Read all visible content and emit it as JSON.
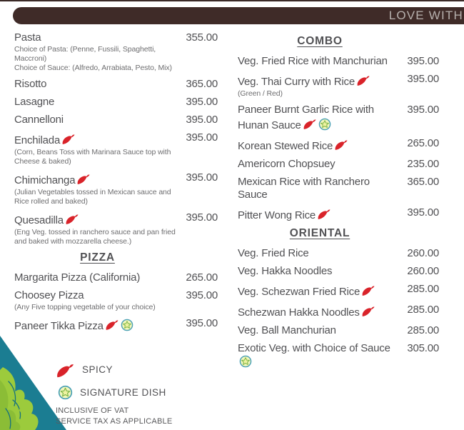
{
  "top_bar": {
    "title": "LOVE WITH"
  },
  "menu": {
    "left_column": {
      "sections": [
        {
          "heading": "",
          "items": [
            {
              "name": "Pasta",
              "price": "355.00",
              "spicy": false,
              "signature": false,
              "desc": [
                "Choice of Pasta: (Penne, Fussili, Spaghetti, Maccroni)",
                "Choice of Sauce:  (Alfredo, Arrabiata, Pesto, Mix)"
              ]
            },
            {
              "name": "Risotto",
              "price": "365.00",
              "spicy": false,
              "signature": false,
              "desc": []
            },
            {
              "name": "Lasagne",
              "price": "395.00",
              "spicy": false,
              "signature": false,
              "desc": []
            },
            {
              "name": "Cannelloni",
              "price": "395.00",
              "spicy": false,
              "signature": false,
              "desc": []
            },
            {
              "name": "Enchilada",
              "price": "395.00",
              "spicy": true,
              "signature": false,
              "desc": [
                "(Corn, Beans Toss with Marinara Sauce top with",
                "Cheese & baked)"
              ]
            },
            {
              "name": "Chimichanga",
              "price": "395.00",
              "spicy": true,
              "signature": false,
              "desc": [
                "(Julian Vegetables tossed in Mexican sauce and",
                "Rice rolled and baked)"
              ]
            },
            {
              "name": "Quesadilla",
              "price": "395.00",
              "spicy": true,
              "signature": false,
              "desc": [
                "(Eng Veg. tossed in ranchero sauce and pan fried",
                "and baked with mozzarella cheese.)"
              ]
            }
          ]
        },
        {
          "heading": "PIZZA",
          "items": [
            {
              "name": "Margarita Pizza (California)",
              "price": "265.00",
              "spicy": false,
              "signature": false,
              "desc": []
            },
            {
              "name": "Choosey Pizza",
              "price": "395.00",
              "spicy": false,
              "signature": false,
              "desc": [
                "(Any Five topping vegetable of your choice)"
              ]
            },
            {
              "name": "Paneer Tikka Pizza",
              "price": "395.00",
              "spicy": true,
              "signature": true,
              "desc": []
            }
          ]
        }
      ]
    },
    "right_column": {
      "sections": [
        {
          "heading": "COMBO",
          "items": [
            {
              "name": "Veg. Fried Rice with Manchurian",
              "price": "395.00",
              "spicy": false,
              "signature": false,
              "desc": []
            },
            {
              "name": "Veg. Thai Curry with Rice",
              "price": "395.00",
              "spicy": true,
              "signature": false,
              "desc": [
                "(Green / Red)"
              ]
            },
            {
              "name": "Paneer Burnt Garlic Rice with Hunan Sauce",
              "price": "395.00",
              "spicy": true,
              "signature": true,
              "desc": []
            },
            {
              "name": "Korean Stewed Rice",
              "price": "265.00",
              "spicy": true,
              "signature": false,
              "desc": []
            },
            {
              "name": "Americorn Chopsuey",
              "price": "235.00",
              "spicy": false,
              "signature": false,
              "desc": []
            },
            {
              "name": "Mexican Rice with Ranchero Sauce",
              "price": "365.00",
              "spicy": false,
              "signature": false,
              "desc": []
            },
            {
              "name": "Pitter Wong Rice",
              "price": "395.00",
              "spicy": true,
              "signature": false,
              "desc": []
            }
          ]
        },
        {
          "heading": "ORIENTAL",
          "items": [
            {
              "name": "Veg. Fried Rice",
              "price": "260.00",
              "spicy": false,
              "signature": false,
              "desc": []
            },
            {
              "name": "Veg. Hakka Noodles",
              "price": "260.00",
              "spicy": false,
              "signature": false,
              "desc": []
            },
            {
              "name": "Veg. Schezwan Fried Rice",
              "price": "285.00",
              "spicy": true,
              "signature": false,
              "desc": []
            },
            {
              "name": "Schezwan Hakka Noodles",
              "price": "285.00",
              "spicy": true,
              "signature": false,
              "desc": []
            },
            {
              "name": "Veg. Ball Manchurian",
              "price": "285.00",
              "spicy": false,
              "signature": false,
              "desc": []
            },
            {
              "name": "Exotic Veg. with Choice of Sauce",
              "price": "305.00",
              "spicy": false,
              "signature": true,
              "desc": []
            }
          ]
        }
      ]
    }
  },
  "legend": {
    "spicy_label": "SPICY",
    "signature_label": "SIGNATURE DISH",
    "notes": [
      "INCLUSIVE OF VAT",
      "SERVICE TAX AS APPLICABLE"
    ]
  },
  "colors": {
    "chili_red": "#d9232a",
    "star_ring": "#49a0b5",
    "star_fill": "#f3f6bb",
    "star_star_fill": "#eef2a0",
    "star_green": "#78b344",
    "triangle_teal": "#1b7d92",
    "plant_green": "#9ccb3c",
    "bar_brown": "#3f2b28",
    "text_gray": "#515154"
  }
}
